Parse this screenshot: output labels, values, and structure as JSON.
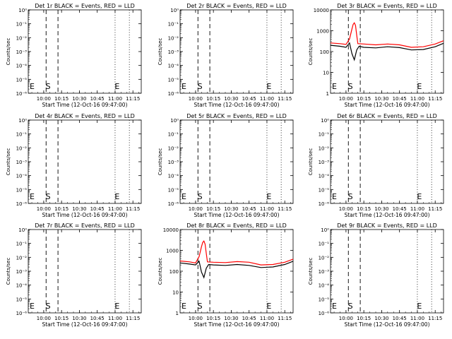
{
  "chart_data": [
    {
      "type": "line",
      "title": "Det 1r BLACK = Events, RED = LLD",
      "xlabel": "Start Time (12-Oct-16 09:47:00)",
      "ylabel": "Counts/sec",
      "scale": "log",
      "yticks": [
        "10⁻⁶",
        "10⁻⁵",
        "10⁻⁴",
        "10⁻³",
        "10⁻²",
        "10⁻¹",
        "10⁰"
      ],
      "ylim": [
        1e-06,
        1
      ],
      "xticks": [
        "10:00",
        "10:15",
        "10:30",
        "10:45",
        "11:00",
        "11:15"
      ],
      "xlim": [
        "09:47",
        "11:22"
      ],
      "markers": {
        "S": "10:04",
        "E": "11:02",
        "dashed": [
          "10:02",
          "10:12"
        ],
        "dotted": [
          "11:00",
          "11:12"
        ]
      },
      "series": []
    },
    {
      "type": "line",
      "title": "Det 2r BLACK = Events, RED = LLD",
      "xlabel": "Start Time (12-Oct-16 09:47:00)",
      "ylabel": "Counts/sec",
      "scale": "log",
      "yticks": [
        "10⁻⁶",
        "10⁻⁵",
        "10⁻⁴",
        "10⁻³",
        "10⁻²",
        "10⁻¹",
        "10⁰"
      ],
      "ylim": [
        1e-06,
        1
      ],
      "xticks": [
        "10:00",
        "10:15",
        "10:30",
        "10:45",
        "11:00",
        "11:15"
      ],
      "xlim": [
        "09:47",
        "11:22"
      ],
      "markers": {
        "S": "10:04",
        "E": "11:02",
        "dashed": [
          "10:02",
          "10:12"
        ],
        "dotted": [
          "11:00",
          "11:12"
        ]
      },
      "series": []
    },
    {
      "type": "line",
      "title": "Det 3r BLACK = Events, RED = LLD",
      "xlabel": "Start Time (12-Oct-16 09:47:00)",
      "ylabel": "Counts/sec",
      "scale": "log",
      "yticks": [
        "1",
        "10",
        "100",
        "1000",
        "10000"
      ],
      "ylim": [
        1,
        10000
      ],
      "xticks": [
        "10:00",
        "10:15",
        "10:30",
        "10:45",
        "11:00",
        "11:15"
      ],
      "xlim": [
        "09:47",
        "11:22"
      ],
      "markers": {
        "S": "10:04",
        "E": "11:02",
        "dashed": [
          "10:02",
          "10:12"
        ],
        "dotted": [
          "11:00",
          "11:12"
        ]
      },
      "series": [
        {
          "color": "#ff0000",
          "x": [
            "09:47",
            "09:55",
            "10:00",
            "10:03",
            "10:05",
            "10:06",
            "10:07",
            "10:08",
            "10:09",
            "10:10",
            "10:15",
            "10:25",
            "10:35",
            "10:45",
            "10:55",
            "11:05",
            "11:15",
            "11:22"
          ],
          "y": [
            260,
            240,
            220,
            400,
            1200,
            2000,
            2400,
            1800,
            600,
            240,
            230,
            210,
            230,
            210,
            160,
            170,
            230,
            330
          ]
        },
        {
          "color": "#000000",
          "x": [
            "09:47",
            "09:55",
            "10:00",
            "10:03",
            "10:05",
            "10:07",
            "10:09",
            "10:11",
            "10:15",
            "10:25",
            "10:35",
            "10:45",
            "10:55",
            "11:05",
            "11:15",
            "11:22"
          ],
          "y": [
            200,
            180,
            160,
            260,
            80,
            40,
            120,
            180,
            160,
            150,
            170,
            155,
            120,
            125,
            170,
            250
          ]
        }
      ]
    },
    {
      "type": "line",
      "title": "Det 4r BLACK = Events, RED = LLD",
      "xlabel": "Start Time (12-Oct-16 09:47:00)",
      "ylabel": "Counts/sec",
      "scale": "log",
      "yticks": [
        "10⁻⁶",
        "10⁻⁵",
        "10⁻⁴",
        "10⁻³",
        "10⁻²",
        "10⁻¹",
        "10⁰"
      ],
      "ylim": [
        1e-06,
        1
      ],
      "xticks": [
        "10:00",
        "10:15",
        "10:30",
        "10:45",
        "11:00",
        "11:15"
      ],
      "xlim": [
        "09:47",
        "11:22"
      ],
      "markers": {
        "S": "10:04",
        "E": "11:02",
        "dashed": [
          "10:02",
          "10:12"
        ],
        "dotted": [
          "11:00",
          "11:12"
        ]
      },
      "series": []
    },
    {
      "type": "line",
      "title": "Det 5r BLACK = Events, RED = LLD",
      "xlabel": "Start Time (12-Oct-16 09:47:00)",
      "ylabel": "Counts/sec",
      "scale": "log",
      "yticks": [
        "10⁻⁶",
        "10⁻⁵",
        "10⁻⁴",
        "10⁻³",
        "10⁻²",
        "10⁻¹",
        "10⁰"
      ],
      "ylim": [
        1e-06,
        1
      ],
      "xticks": [
        "10:00",
        "10:15",
        "10:30",
        "10:45",
        "11:00",
        "11:15"
      ],
      "xlim": [
        "09:47",
        "11:22"
      ],
      "markers": {
        "S": "10:04",
        "E": "11:02",
        "dashed": [
          "10:02",
          "10:12"
        ],
        "dotted": [
          "11:00",
          "11:12"
        ]
      },
      "series": []
    },
    {
      "type": "line",
      "title": "Det 6r BLACK = Events, RED = LLD",
      "xlabel": "Start Time (12-Oct-16 09:47:00)",
      "ylabel": "Counts/sec",
      "scale": "log",
      "yticks": [
        "10⁻⁶",
        "10⁻⁵",
        "10⁻⁴",
        "10⁻³",
        "10⁻²",
        "10⁻¹",
        "10⁰"
      ],
      "ylim": [
        1e-06,
        1
      ],
      "xticks": [
        "10:00",
        "10:15",
        "10:30",
        "10:45",
        "11:00",
        "11:15"
      ],
      "xlim": [
        "09:47",
        "11:22"
      ],
      "markers": {
        "S": "10:04",
        "E": "11:02",
        "dashed": [
          "10:02",
          "10:12"
        ],
        "dotted": [
          "11:00",
          "11:12"
        ]
      },
      "series": []
    },
    {
      "type": "line",
      "title": "Det 7r BLACK = Events, RED = LLD",
      "xlabel": "Start Time (12-Oct-16 09:47:00)",
      "ylabel": "Counts/sec",
      "scale": "log",
      "yticks": [
        "10⁻⁶",
        "10⁻⁵",
        "10⁻⁴",
        "10⁻³",
        "10⁻²",
        "10⁻¹",
        "10⁰"
      ],
      "ylim": [
        1e-06,
        1
      ],
      "xticks": [
        "10:00",
        "10:15",
        "10:30",
        "10:45",
        "11:00",
        "11:15"
      ],
      "xlim": [
        "09:47",
        "11:22"
      ],
      "markers": {
        "S": "10:04",
        "E": "11:02",
        "dashed": [
          "10:02",
          "10:12"
        ],
        "dotted": [
          "11:00",
          "11:12"
        ]
      },
      "series": []
    },
    {
      "type": "line",
      "title": "Det 8r BLACK = Events, RED = LLD",
      "xlabel": "Start Time (12-Oct-16 09:47:00)",
      "ylabel": "Counts/sec",
      "scale": "log",
      "yticks": [
        "1",
        "10",
        "100",
        "1000",
        "10000"
      ],
      "ylim": [
        1,
        10000
      ],
      "xticks": [
        "10:00",
        "10:15",
        "10:30",
        "10:45",
        "11:00",
        "11:15"
      ],
      "xlim": [
        "09:47",
        "11:22"
      ],
      "markers": {
        "S": "10:04",
        "E": "11:02",
        "dashed": [
          "10:02",
          "10:12"
        ],
        "dotted": [
          "11:00",
          "11:12"
        ]
      },
      "series": [
        {
          "color": "#ff0000",
          "x": [
            "09:47",
            "09:55",
            "10:00",
            "10:03",
            "10:05",
            "10:06",
            "10:07",
            "10:08",
            "10:09",
            "10:10",
            "10:15",
            "10:25",
            "10:35",
            "10:45",
            "10:55",
            "11:05",
            "11:15",
            "11:22"
          ],
          "y": [
            310,
            280,
            250,
            500,
            1500,
            2400,
            2800,
            2000,
            700,
            280,
            270,
            260,
            290,
            270,
            200,
            210,
            270,
            380
          ]
        },
        {
          "color": "#000000",
          "x": [
            "09:47",
            "09:55",
            "10:00",
            "10:03",
            "10:05",
            "10:07",
            "10:09",
            "10:11",
            "10:15",
            "10:25",
            "10:35",
            "10:45",
            "10:55",
            "11:05",
            "11:15",
            "11:22"
          ],
          "y": [
            250,
            220,
            200,
            300,
            90,
            50,
            140,
            210,
            200,
            190,
            210,
            190,
            150,
            160,
            210,
            300
          ]
        }
      ]
    },
    {
      "type": "line",
      "title": "Det 9r BLACK = Events, RED = LLD",
      "xlabel": "Start Time (12-Oct-16 09:47:00)",
      "ylabel": "Counts/sec",
      "scale": "log",
      "yticks": [
        "10⁻⁶",
        "10⁻⁵",
        "10⁻⁴",
        "10⁻³",
        "10⁻²",
        "10⁻¹",
        "10⁰"
      ],
      "ylim": [
        1e-06,
        1
      ],
      "xticks": [
        "10:00",
        "10:15",
        "10:30",
        "10:45",
        "11:00",
        "11:15"
      ],
      "xlim": [
        "09:47",
        "11:22"
      ],
      "markers": {
        "S": "10:04",
        "E": "11:02",
        "dashed": [
          "10:02",
          "10:12"
        ],
        "dotted": [
          "11:00",
          "11:12"
        ]
      },
      "series": []
    }
  ]
}
